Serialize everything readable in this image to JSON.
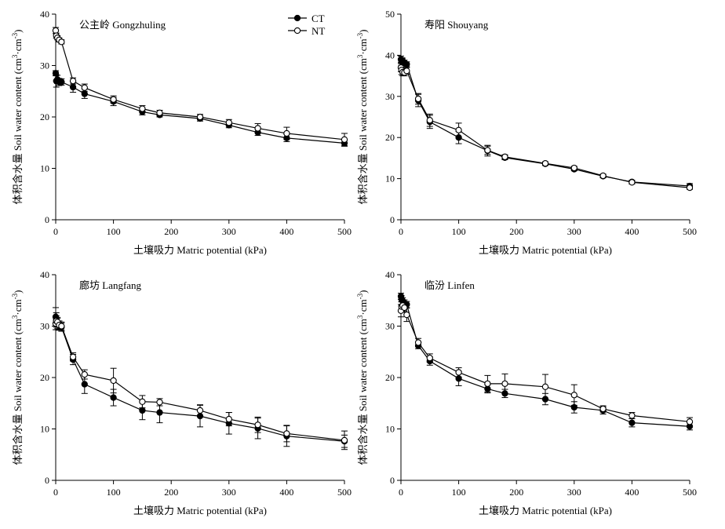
{
  "chart_data": [
    {
      "type": "line",
      "title": "公主岭 Gongzhuling",
      "xlabel": "土壤吸力 Matric potential (kPa)",
      "ylabel": "体积含水量 Soil water content (cm³·cm⁻³)",
      "xlim": [
        0,
        500
      ],
      "ylim": [
        0,
        40
      ],
      "xticks": [
        0,
        100,
        200,
        300,
        400,
        500
      ],
      "yticks": [
        0,
        10,
        20,
        30,
        40
      ],
      "x": [
        0,
        1,
        3,
        6,
        10,
        30,
        50,
        100,
        150,
        180,
        250,
        300,
        350,
        400,
        500
      ],
      "series": [
        {
          "name": "CT",
          "marker": "filled-circle",
          "color": "#000000",
          "values": [
            28.5,
            27.0,
            27.3,
            26.8,
            26.8,
            25.8,
            24.5,
            23.0,
            21.0,
            20.4,
            19.7,
            18.4,
            17.0,
            15.9,
            14.9
          ],
          "errors": [
            0.5,
            1.2,
            0.8,
            0.7,
            0.6,
            1.0,
            0.9,
            0.8,
            0.6,
            0.4,
            0.5,
            0.5,
            0.6,
            0.7,
            0.6
          ]
        },
        {
          "name": "NT",
          "marker": "open-circle",
          "color": "#000000",
          "values": [
            36.8,
            35.8,
            35.4,
            35.0,
            34.6,
            27.0,
            25.7,
            23.4,
            21.6,
            20.8,
            20.0,
            18.9,
            17.8,
            16.8,
            15.6
          ],
          "errors": [
            0.6,
            0.5,
            0.4,
            0.4,
            0.4,
            0.6,
            0.7,
            0.7,
            0.6,
            0.5,
            0.5,
            0.6,
            0.9,
            1.2,
            1.2
          ]
        }
      ]
    },
    {
      "type": "line",
      "title": "寿阳 Shouyang",
      "xlabel": "土壤吸力 Matric potential (kPa)",
      "ylabel": "体积含水量 Soil water content (cm³·cm⁻³)",
      "xlim": [
        0,
        500
      ],
      "ylim": [
        0,
        50
      ],
      "xticks": [
        0,
        100,
        200,
        300,
        400,
        500
      ],
      "yticks": [
        0,
        10,
        20,
        30,
        40,
        50
      ],
      "x": [
        0,
        1,
        3,
        6,
        10,
        30,
        50,
        100,
        150,
        180,
        250,
        300,
        350,
        400,
        500
      ],
      "series": [
        {
          "name": "CT",
          "marker": "filled-circle",
          "color": "#000000",
          "values": [
            39.0,
            38.5,
            38.6,
            38.2,
            37.8,
            29.0,
            23.8,
            20.0,
            16.8,
            15.1,
            13.6,
            12.3,
            10.6,
            9.2,
            8.2
          ],
          "errors": [
            0.8,
            0.9,
            0.7,
            0.6,
            0.6,
            1.5,
            1.6,
            1.5,
            1.3,
            0.5,
            0.4,
            0.4,
            0.4,
            0.4,
            0.6
          ]
        },
        {
          "name": "NT",
          "marker": "open-circle",
          "color": "#000000",
          "values": [
            37.0,
            36.4,
            35.9,
            35.8,
            36.2,
            29.4,
            24.2,
            21.8,
            16.9,
            15.3,
            13.7,
            12.6,
            10.7,
            9.1,
            7.8
          ],
          "errors": [
            1.0,
            1.1,
            0.9,
            0.8,
            0.8,
            1.3,
            1.5,
            1.7,
            1.0,
            0.5,
            0.4,
            0.4,
            0.4,
            0.4,
            0.4
          ]
        }
      ]
    },
    {
      "type": "line",
      "title": "廊坊 Langfang",
      "xlabel": "土壤吸力 Matric potential (kPa)",
      "ylabel": "体积含水量 Soil water content (cm³·cm⁻³)",
      "xlim": [
        0,
        500
      ],
      "ylim": [
        0,
        40
      ],
      "xticks": [
        0,
        100,
        200,
        300,
        400,
        500
      ],
      "yticks": [
        0,
        10,
        20,
        30,
        40
      ],
      "x": [
        0,
        1,
        3,
        6,
        10,
        30,
        50,
        100,
        150,
        180,
        250,
        300,
        350,
        400,
        500
      ],
      "series": [
        {
          "name": "CT",
          "marker": "filled-circle",
          "color": "#000000",
          "values": [
            31.8,
            31.2,
            30.5,
            30.1,
            29.8,
            23.5,
            18.7,
            16.1,
            13.6,
            13.2,
            12.5,
            11.1,
            10.1,
            8.6,
            7.6
          ],
          "errors": [
            1.8,
            1.4,
            1.0,
            0.9,
            0.8,
            1.0,
            1.8,
            1.6,
            1.8,
            2.0,
            2.1,
            2.1,
            2.0,
            2.0,
            1.2
          ]
        },
        {
          "name": "NT",
          "marker": "open-circle",
          "color": "#000000",
          "values": [
            30.5,
            31.0,
            30.8,
            30.2,
            30.0,
            24.0,
            20.6,
            19.4,
            15.3,
            15.2,
            13.6,
            11.9,
            10.8,
            9.1,
            7.8
          ],
          "errors": [
            1.2,
            1.0,
            0.9,
            0.8,
            0.8,
            0.8,
            0.9,
            2.4,
            1.2,
            0.7,
            1.1,
            1.3,
            1.5,
            1.6,
            1.8
          ]
        }
      ]
    },
    {
      "type": "line",
      "title": "临汾 Linfen",
      "xlabel": "土壤吸力 Matric potential (kPa)",
      "ylabel": "体积含水量 Soil water content (cm³·cm⁻³)",
      "xlim": [
        0,
        500
      ],
      "ylim": [
        0,
        40
      ],
      "xticks": [
        0,
        100,
        200,
        300,
        400,
        500
      ],
      "yticks": [
        0,
        10,
        20,
        30,
        40
      ],
      "x": [
        0,
        1,
        3,
        6,
        10,
        30,
        50,
        100,
        150,
        180,
        250,
        300,
        350,
        400,
        500
      ],
      "series": [
        {
          "name": "CT",
          "marker": "filled-circle",
          "color": "#000000",
          "values": [
            35.8,
            35.3,
            34.9,
            34.5,
            34.2,
            26.2,
            23.2,
            19.8,
            17.8,
            16.9,
            15.8,
            14.2,
            13.6,
            11.2,
            10.5
          ],
          "errors": [
            0.6,
            0.6,
            0.6,
            0.6,
            0.6,
            0.6,
            0.8,
            1.4,
            0.8,
            0.8,
            1.1,
            1.1,
            0.7,
            0.8,
            0.7
          ]
        },
        {
          "name": "NT",
          "marker": "open-circle",
          "color": "#000000",
          "values": [
            33.0,
            33.8,
            34.0,
            33.6,
            32.2,
            26.8,
            23.8,
            21.0,
            18.8,
            18.8,
            18.2,
            16.6,
            13.9,
            12.6,
            11.4
          ],
          "errors": [
            1.2,
            1.0,
            0.9,
            0.9,
            1.3,
            0.8,
            0.8,
            0.9,
            1.6,
            1.9,
            2.4,
            2.0,
            0.6,
            0.6,
            0.8
          ]
        }
      ]
    }
  ],
  "legend": {
    "items": [
      {
        "label": "CT",
        "marker": "filled-circle"
      },
      {
        "label": "NT",
        "marker": "open-circle"
      }
    ],
    "placement": "top-right of first panel"
  }
}
